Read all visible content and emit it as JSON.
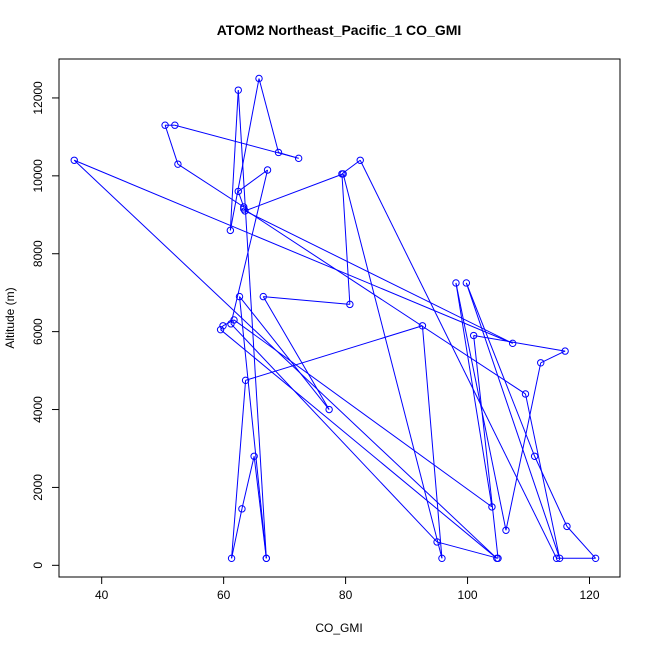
{
  "chart_data": {
    "type": "scatter",
    "mode": "lines+markers",
    "title": "ATOM2 Northeast_Pacific_1 CO_GMI",
    "xlabel": "CO_GMI",
    "ylabel": "Altitude (m)",
    "xlim": [
      33,
      125
    ],
    "ylim": [
      -300,
      13000
    ],
    "xticks": [
      40,
      60,
      80,
      100,
      120
    ],
    "yticks": [
      0,
      2000,
      4000,
      6000,
      8000,
      10000,
      12000
    ],
    "color": "#0000ff",
    "grid": false,
    "legend": "none",
    "series": [
      {
        "x": [
          67.0,
          62.4,
          61.1,
          65.8,
          69.0,
          72.3,
          52.0,
          50.4,
          52.5,
          63.3,
          62.4,
          67.2,
          61.2,
          95.0,
          105.0,
          101.0,
          116.0,
          112.0,
          106.3,
          98.1,
          104.0,
          61.7,
          59.9,
          59.5,
          104.8,
          35.5,
          107.4,
          63.5,
          79.6,
          95.8,
          92.6,
          63.6,
          61.3,
          63.0,
          65.0,
          67.0,
          62.6,
          77.3,
          66.5,
          80.7,
          79.4,
          82.4,
          114.6,
          121.0,
          116.3,
          111.0,
          99.8,
          115.1,
          109.5,
          63.3
        ],
        "y": [
          180,
          12200,
          8600,
          12500,
          10600,
          10450,
          11300,
          11300,
          10300,
          9200,
          9600,
          10150,
          6200,
          600,
          180,
          5900,
          5500,
          5200,
          900,
          7250,
          1500,
          6300,
          6150,
          6050,
          180,
          10400,
          5700,
          9100,
          10050,
          180,
          6150,
          4750,
          180,
          1450,
          2800,
          180,
          6900,
          4000,
          6900,
          6700,
          10050,
          10400,
          180,
          180,
          1000,
          2800,
          7250,
          180,
          4400,
          9150
        ]
      }
    ]
  }
}
